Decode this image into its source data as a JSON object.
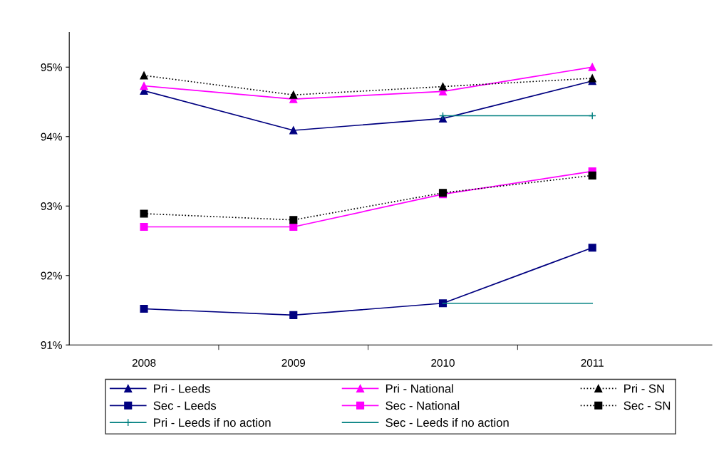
{
  "chart_data": {
    "type": "line",
    "categories": [
      "2008",
      "2009",
      "2010",
      "2011"
    ],
    "ylim": [
      91,
      95.5
    ],
    "yticks": [
      {
        "value": 91,
        "label": "91%"
      },
      {
        "value": 92,
        "label": "92%"
      },
      {
        "value": 93,
        "label": "93%"
      },
      {
        "value": 94,
        "label": "94%"
      },
      {
        "value": 95,
        "label": "95%"
      }
    ],
    "grid": false,
    "legend": "bottom",
    "series": [
      {
        "name": "Pri - Leeds",
        "color": "#000080",
        "marker": "triangle",
        "line_style": "solid",
        "values": [
          94.66,
          94.09,
          94.26,
          94.8
        ]
      },
      {
        "name": "Pri - National",
        "color": "#ff00ff",
        "marker": "triangle",
        "line_style": "solid",
        "values": [
          94.73,
          94.54,
          94.65,
          95.0
        ]
      },
      {
        "name": "Pri - SN",
        "color": "#000000",
        "marker": "triangle",
        "line_style": "dotted",
        "values": [
          94.88,
          94.6,
          94.72,
          94.84
        ]
      },
      {
        "name": "Sec - Leeds",
        "color": "#000080",
        "marker": "square",
        "line_style": "solid",
        "values": [
          91.52,
          91.43,
          91.6,
          92.4
        ]
      },
      {
        "name": "Sec - National",
        "color": "#ff00ff",
        "marker": "square",
        "line_style": "solid",
        "values": [
          92.7,
          92.7,
          93.17,
          93.5
        ]
      },
      {
        "name": "Sec - SN",
        "color": "#000000",
        "marker": "square",
        "line_style": "dotted",
        "values": [
          92.89,
          92.8,
          93.19,
          93.44
        ]
      },
      {
        "name": "Pri - Leeds if no action",
        "color": "#008080",
        "marker": "cross",
        "line_style": "solid",
        "values": [
          null,
          null,
          94.3,
          94.3
        ]
      },
      {
        "name": "Sec - Leeds if no action",
        "color": "#008080",
        "marker": "none",
        "line_style": "solid",
        "values": [
          null,
          null,
          91.6,
          91.6
        ]
      }
    ]
  }
}
